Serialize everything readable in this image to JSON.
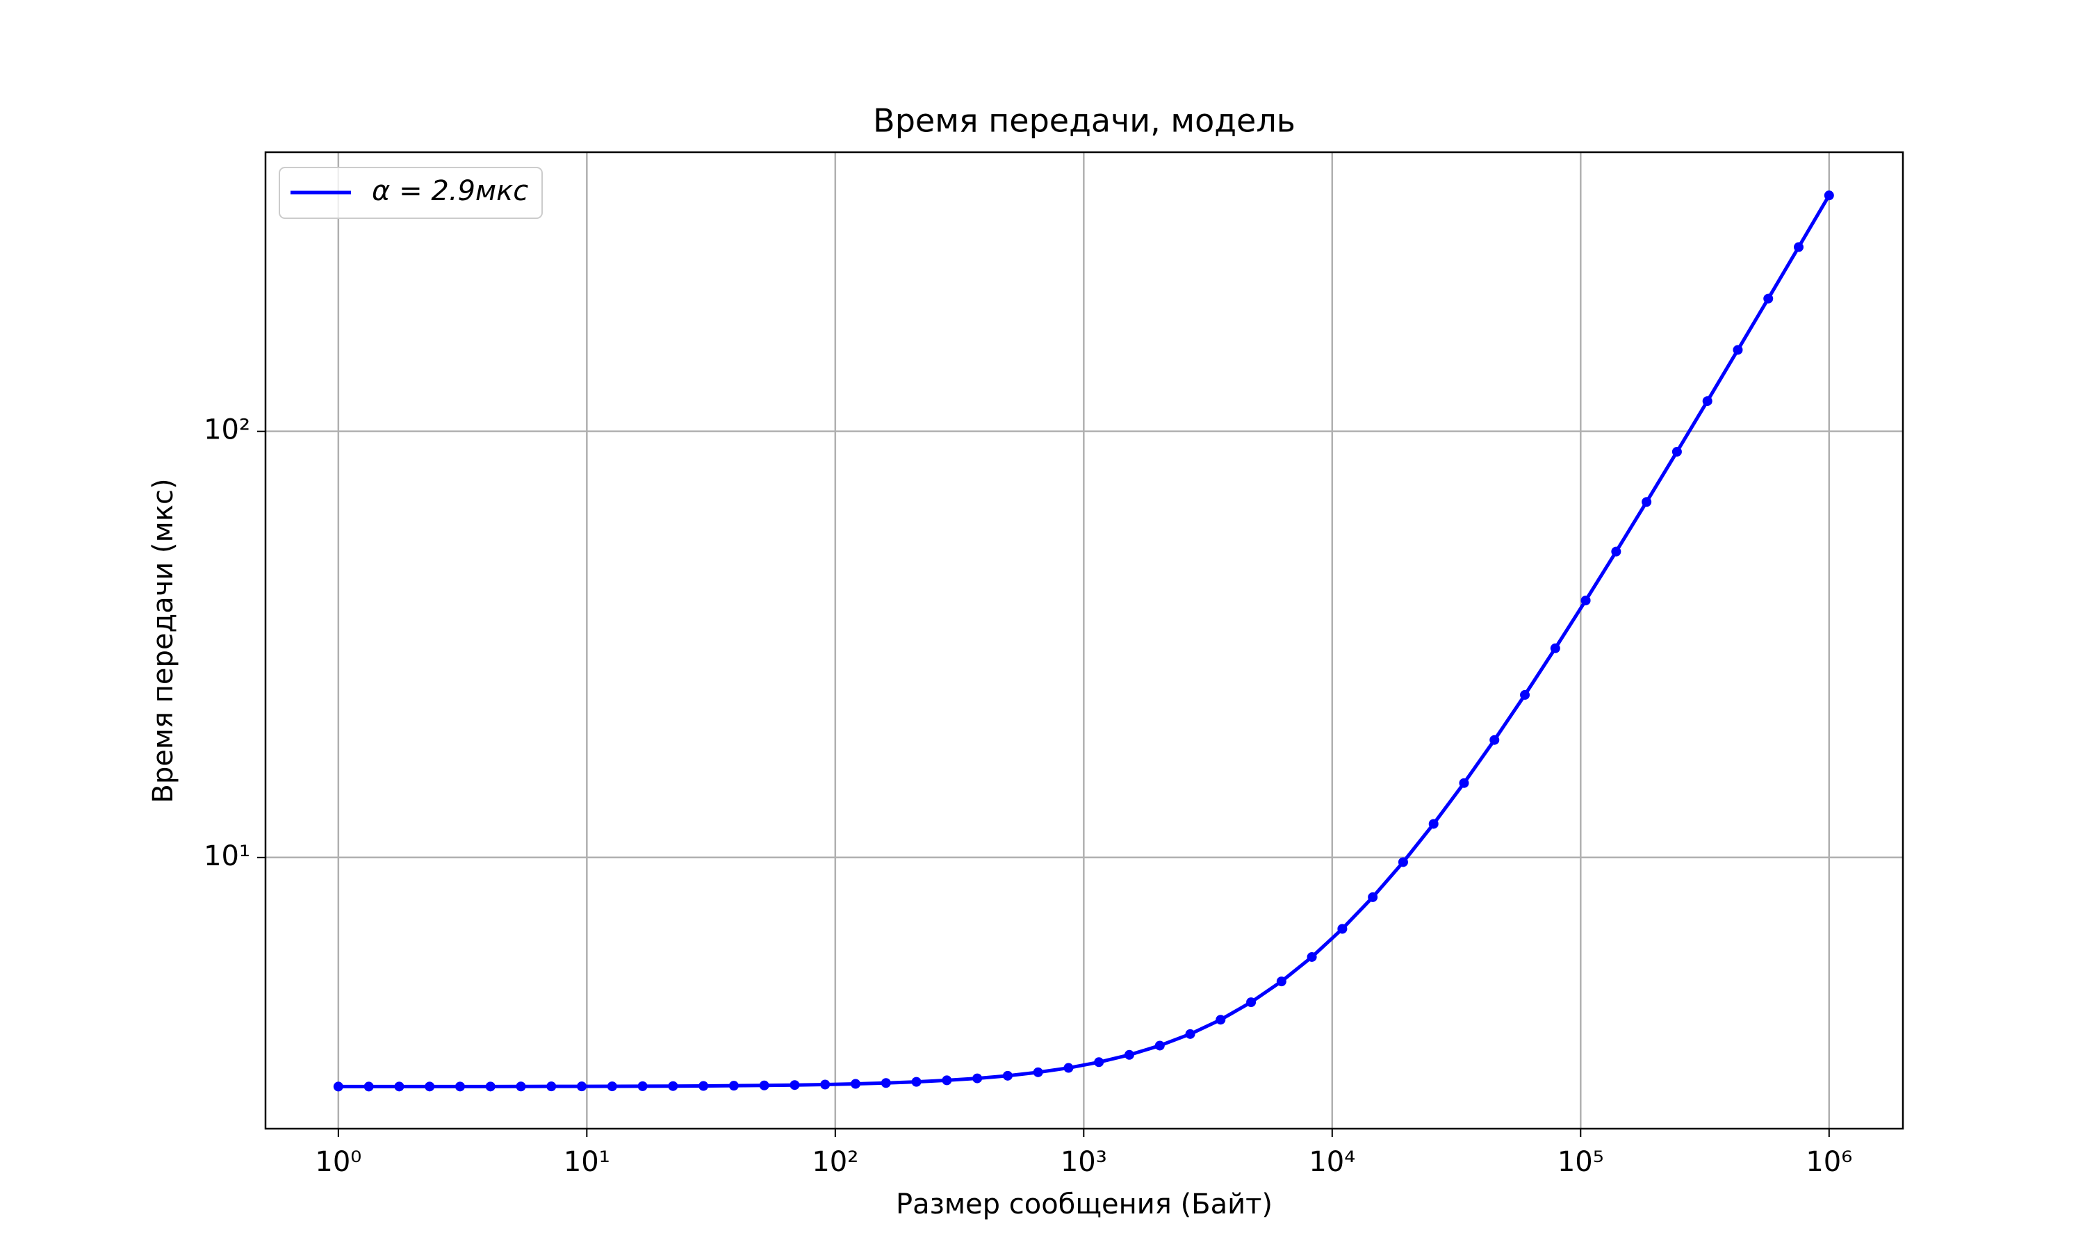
{
  "chart_data": {
    "type": "line",
    "title": "Время передачи, модель",
    "xlabel": "Размер сообщения (Байт)",
    "ylabel": "Время передачи (мкс)",
    "x": [
      1,
      1.326,
      1.758,
      2.33,
      3.089,
      4.095,
      5.429,
      7.197,
      9.541,
      12.65,
      16.77,
      22.23,
      29.47,
      39.07,
      51.79,
      68.66,
      91.02,
      120.7,
      160.0,
      212.1,
      281.2,
      372.8,
      494.2,
      655.1,
      868.5,
      1151,
      1526,
      2024,
      2683,
      3556,
      4715,
      6251,
      8286,
      10985,
      14563,
      19307,
      25595,
      33932,
      44984,
      59636,
      79060,
      104811,
      138950,
      184207,
      244205,
      323746,
      429193,
      568987,
      754312,
      1000000
    ],
    "series": [
      {
        "name": "α = 2.9мкс",
        "color": "#0000ff",
        "values": [
          2.9,
          2.9,
          2.901,
          2.901,
          2.901,
          2.901,
          2.902,
          2.903,
          2.903,
          2.904,
          2.906,
          2.908,
          2.91,
          2.914,
          2.918,
          2.924,
          2.932,
          2.943,
          2.957,
          2.975,
          3.0,
          3.032,
          3.075,
          3.133,
          3.208,
          3.309,
          3.442,
          3.619,
          3.852,
          4.162,
          4.574,
          5.119,
          5.842,
          6.8,
          8.07,
          9.754,
          11.99,
          14.95,
          18.87,
          24.07,
          30.97,
          40.11,
          52.23,
          68.29,
          89.59,
          117.8,
          155.3,
          204.9,
          270.7,
          357.9
        ]
      }
    ],
    "log_x": true,
    "log_y": true,
    "xlim": [
      0.509,
      1982000
    ],
    "ylim": [
      2.31,
      452
    ],
    "xticks": [
      {
        "value": 1,
        "label": "10⁰"
      },
      {
        "value": 10,
        "label": "10¹"
      },
      {
        "value": 100,
        "label": "10²"
      },
      {
        "value": 1000,
        "label": "10³"
      },
      {
        "value": 10000,
        "label": "10⁴"
      },
      {
        "value": 100000,
        "label": "10⁵"
      },
      {
        "value": 1000000,
        "label": "10⁶"
      }
    ],
    "yticks": [
      {
        "value": 10,
        "label": "10¹"
      },
      {
        "value": 100,
        "label": "10²"
      }
    ],
    "grid": true,
    "legend_loc": "upper left",
    "markers": true
  }
}
